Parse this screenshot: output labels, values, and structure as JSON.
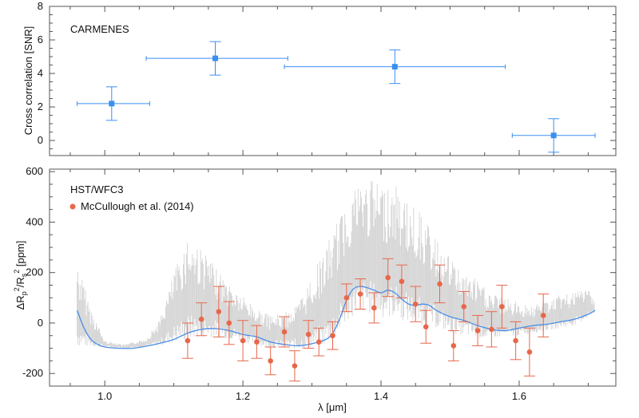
{
  "colors": {
    "carmenes": "#3b8ff0",
    "model": "#4a8ee8",
    "spectrum": "#c8c8c8",
    "hst": "#e8674a",
    "frame": "#555555"
  },
  "chart_data": [
    {
      "type": "scatter",
      "panel_label": "CARMENES",
      "ylabel": "Cross correlation [SNR]",
      "xlim": [
        0.92,
        1.74
      ],
      "ylim": [
        -0.9,
        8.0
      ],
      "xticks": [
        1.0,
        1.2,
        1.4,
        1.6
      ],
      "yticks": [
        0,
        2,
        4,
        6,
        8
      ],
      "ytick_labels": [
        "0",
        "2",
        "4",
        "6",
        "8"
      ],
      "points": [
        {
          "x": 1.01,
          "y": 2.2,
          "xmin": 0.96,
          "xmax": 1.065,
          "yerr": 1.0
        },
        {
          "x": 1.16,
          "y": 4.9,
          "xmin": 1.06,
          "xmax": 1.265,
          "yerr": 1.0
        },
        {
          "x": 1.42,
          "y": 4.4,
          "xmin": 1.26,
          "xmax": 1.58,
          "yerr": 1.0
        },
        {
          "x": 1.65,
          "y": 0.3,
          "xmin": 1.59,
          "xmax": 1.71,
          "yerr": 1.0
        }
      ]
    },
    {
      "type": "line",
      "panel_label": "HST/WFC3",
      "legend": "McCullough et al. (2014)",
      "xlabel": "λ [μm]",
      "ylabel_parts": {
        "delta": "ΔR",
        "p": "p",
        "sup1": "2",
        "slash": "/R",
        "s": "s",
        "sup2": "2",
        "unit": " [ppm]"
      },
      "xlim": [
        0.92,
        1.74
      ],
      "ylim": [
        -250,
        610
      ],
      "xticks": [
        1.0,
        1.2,
        1.4,
        1.6
      ],
      "xtick_labels": [
        "1.0",
        "1.2",
        "1.4",
        "1.6"
      ],
      "yticks": [
        -200,
        0,
        200,
        400,
        600
      ],
      "ytick_labels": [
        "-200",
        "0",
        "200",
        "400",
        "600"
      ],
      "model": [
        [
          0.96,
          50
        ],
        [
          0.97,
          -20
        ],
        [
          0.98,
          -65
        ],
        [
          0.99,
          -85
        ],
        [
          1.0,
          -95
        ],
        [
          1.02,
          -100
        ],
        [
          1.04,
          -100
        ],
        [
          1.06,
          -92
        ],
        [
          1.08,
          -80
        ],
        [
          1.1,
          -65
        ],
        [
          1.12,
          -40
        ],
        [
          1.14,
          -25
        ],
        [
          1.16,
          -22
        ],
        [
          1.18,
          -30
        ],
        [
          1.2,
          -45
        ],
        [
          1.22,
          -55
        ],
        [
          1.24,
          -75
        ],
        [
          1.26,
          -85
        ],
        [
          1.28,
          -90
        ],
        [
          1.3,
          -82
        ],
        [
          1.32,
          -65
        ],
        [
          1.33,
          -40
        ],
        [
          1.34,
          15
        ],
        [
          1.35,
          90
        ],
        [
          1.36,
          135
        ],
        [
          1.37,
          145
        ],
        [
          1.38,
          140
        ],
        [
          1.39,
          130
        ],
        [
          1.4,
          120
        ],
        [
          1.41,
          130
        ],
        [
          1.42,
          120
        ],
        [
          1.43,
          95
        ],
        [
          1.44,
          75
        ],
        [
          1.45,
          70
        ],
        [
          1.46,
          75
        ],
        [
          1.47,
          70
        ],
        [
          1.48,
          50
        ],
        [
          1.5,
          25
        ],
        [
          1.52,
          10
        ],
        [
          1.54,
          -10
        ],
        [
          1.56,
          -25
        ],
        [
          1.58,
          -30
        ],
        [
          1.6,
          -20
        ],
        [
          1.62,
          -10
        ],
        [
          1.64,
          -5
        ],
        [
          1.66,
          5
        ],
        [
          1.68,
          15
        ],
        [
          1.7,
          35
        ],
        [
          1.71,
          50
        ]
      ],
      "spectrum_envelope": [
        [
          0.96,
          -95,
          250
        ],
        [
          0.98,
          -95,
          60
        ],
        [
          1.0,
          -95,
          -70
        ],
        [
          1.03,
          -100,
          -85
        ],
        [
          1.06,
          -95,
          -60
        ],
        [
          1.08,
          -90,
          20
        ],
        [
          1.1,
          -80,
          200
        ],
        [
          1.12,
          -70,
          350
        ],
        [
          1.14,
          -60,
          300
        ],
        [
          1.16,
          -55,
          220
        ],
        [
          1.18,
          -65,
          160
        ],
        [
          1.2,
          -75,
          110
        ],
        [
          1.22,
          -90,
          60
        ],
        [
          1.24,
          -100,
          30
        ],
        [
          1.26,
          -100,
          40
        ],
        [
          1.28,
          -105,
          80
        ],
        [
          1.3,
          -100,
          190
        ],
        [
          1.32,
          -90,
          300
        ],
        [
          1.34,
          -40,
          420
        ],
        [
          1.36,
          30,
          560
        ],
        [
          1.38,
          40,
          570
        ],
        [
          1.4,
          20,
          560
        ],
        [
          1.42,
          20,
          550
        ],
        [
          1.44,
          0,
          480
        ],
        [
          1.46,
          -10,
          430
        ],
        [
          1.48,
          -20,
          330
        ],
        [
          1.5,
          -40,
          260
        ],
        [
          1.52,
          -50,
          200
        ],
        [
          1.54,
          -60,
          170
        ],
        [
          1.56,
          -60,
          120
        ],
        [
          1.58,
          -55,
          100
        ],
        [
          1.6,
          -50,
          80
        ],
        [
          1.62,
          -40,
          70
        ],
        [
          1.64,
          -30,
          90
        ],
        [
          1.66,
          -20,
          110
        ],
        [
          1.68,
          -10,
          120
        ],
        [
          1.7,
          20,
          140
        ],
        [
          1.71,
          40,
          90
        ]
      ],
      "points": [
        {
          "x": 1.12,
          "y": -70,
          "err": 70
        },
        {
          "x": 1.14,
          "y": 15,
          "err": 65
        },
        {
          "x": 1.165,
          "y": 45,
          "err": 100
        },
        {
          "x": 1.18,
          "y": 0,
          "err": 85
        },
        {
          "x": 1.2,
          "y": -70,
          "err": 80
        },
        {
          "x": 1.22,
          "y": -75,
          "err": 65
        },
        {
          "x": 1.24,
          "y": -150,
          "err": 55
        },
        {
          "x": 1.26,
          "y": -35,
          "err": 60
        },
        {
          "x": 1.275,
          "y": -170,
          "err": 60
        },
        {
          "x": 1.295,
          "y": -45,
          "err": 55
        },
        {
          "x": 1.31,
          "y": -75,
          "err": 55
        },
        {
          "x": 1.33,
          "y": -50,
          "err": 55
        },
        {
          "x": 1.35,
          "y": 100,
          "err": 55
        },
        {
          "x": 1.37,
          "y": 115,
          "err": 60
        },
        {
          "x": 1.39,
          "y": 60,
          "err": 60
        },
        {
          "x": 1.41,
          "y": 180,
          "err": 75
        },
        {
          "x": 1.43,
          "y": 165,
          "err": 65
        },
        {
          "x": 1.45,
          "y": 75,
          "err": 70
        },
        {
          "x": 1.465,
          "y": -15,
          "err": 65
        },
        {
          "x": 1.485,
          "y": 155,
          "err": 75
        },
        {
          "x": 1.505,
          "y": -90,
          "err": 60
        },
        {
          "x": 1.52,
          "y": 65,
          "err": 60
        },
        {
          "x": 1.54,
          "y": -30,
          "err": 60
        },
        {
          "x": 1.56,
          "y": -25,
          "err": 70
        },
        {
          "x": 1.575,
          "y": 65,
          "err": 85
        },
        {
          "x": 1.595,
          "y": -70,
          "err": 75
        },
        {
          "x": 1.615,
          "y": -115,
          "err": 95
        },
        {
          "x": 1.635,
          "y": 30,
          "err": 85
        }
      ]
    }
  ]
}
